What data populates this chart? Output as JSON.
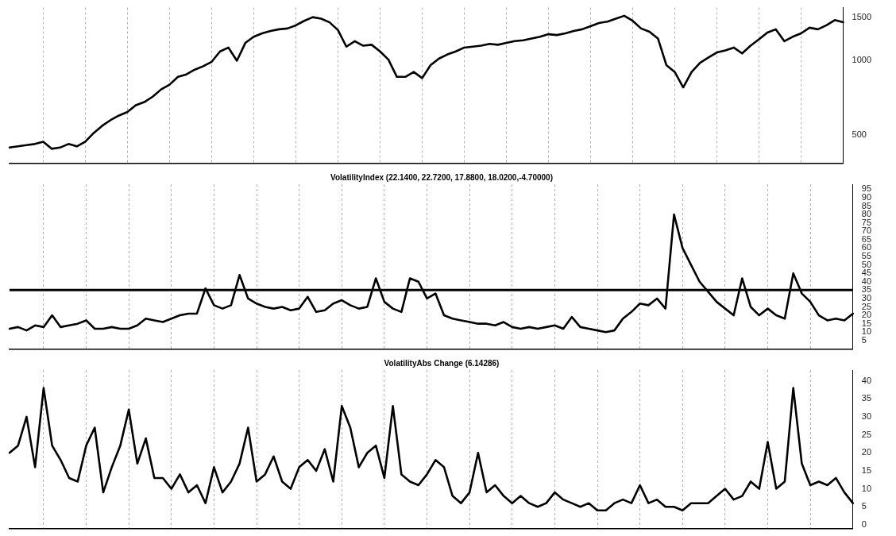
{
  "chart_data": [
    {
      "type": "line",
      "categories": [
        null,
        null,
        null,
        null,
        null,
        null,
        null,
        null,
        null,
        null,
        null,
        null,
        null,
        null,
        null,
        null,
        null,
        null,
        null,
        null,
        null,
        null,
        null,
        null,
        null,
        null,
        null,
        null,
        null,
        null,
        null,
        null,
        null,
        null,
        null,
        null,
        null,
        null,
        null,
        null,
        null,
        null,
        null,
        null,
        null,
        null,
        null,
        null,
        null,
        null,
        null,
        null,
        null,
        null,
        null,
        null,
        null,
        null,
        null,
        null,
        null,
        null,
        null,
        null,
        null,
        null,
        null,
        null,
        null,
        null,
        null,
        null,
        null,
        null,
        null,
        null,
        null,
        null,
        null,
        null,
        null,
        null,
        null,
        null,
        null,
        null,
        null,
        null,
        null,
        null,
        null,
        null,
        null,
        null,
        null,
        null,
        null,
        null,
        null,
        null
      ],
      "values": [
        445,
        450,
        455,
        460,
        470,
        440,
        445,
        460,
        450,
        470,
        510,
        545,
        575,
        600,
        620,
        660,
        680,
        715,
        765,
        800,
        860,
        880,
        920,
        950,
        990,
        1090,
        1130,
        1000,
        1180,
        1250,
        1290,
        1320,
        1340,
        1350,
        1390,
        1450,
        1500,
        1480,
        1430,
        1330,
        1140,
        1200,
        1150,
        1160,
        1090,
        1010,
        860,
        860,
        900,
        850,
        960,
        1020,
        1060,
        1090,
        1130,
        1140,
        1150,
        1170,
        1160,
        1180,
        1200,
        1210,
        1230,
        1250,
        1280,
        1270,
        1290,
        1320,
        1340,
        1380,
        1420,
        1440,
        1480,
        1520,
        1450,
        1350,
        1310,
        1230,
        960,
        900,
        780,
        900,
        980,
        1030,
        1080,
        1100,
        1130,
        1070,
        1150,
        1220,
        1300,
        1340,
        1200,
        1250,
        1290,
        1360,
        1340,
        1390,
        1460,
        1430
      ],
      "color": "#000000",
      "log": true,
      "ylim": [
        385,
        1640
      ],
      "yticks": [
        500,
        1000,
        1500
      ],
      "grid": "x",
      "tick_labels": "y",
      "marker": "none",
      "line_style": "solid"
    },
    {
      "type": "line",
      "title": "VolatilityIndex (22.1400, 22.7200, 17.8800, 18.0200,-4.70000)",
      "categories": [
        null,
        null,
        null,
        null,
        null,
        null,
        null,
        null,
        null,
        null,
        null,
        null,
        null,
        null,
        null,
        null,
        null,
        null,
        null,
        null,
        null,
        null,
        null,
        null,
        null,
        null,
        null,
        null,
        null,
        null,
        null,
        null,
        null,
        null,
        null,
        null,
        null,
        null,
        null,
        null,
        null,
        null,
        null,
        null,
        null,
        null,
        null,
        null,
        null,
        null,
        null,
        null,
        null,
        null,
        null,
        null,
        null,
        null,
        null,
        null,
        null,
        null,
        null,
        null,
        null,
        null,
        null,
        null,
        null,
        null,
        null,
        null,
        null,
        null,
        null,
        null,
        null,
        null,
        null,
        null,
        null,
        null,
        null,
        null,
        null,
        null,
        null,
        null,
        null,
        null,
        null,
        null,
        null,
        null,
        null,
        null,
        null,
        null,
        null,
        null
      ],
      "values": [
        12,
        13,
        11,
        14,
        13,
        20,
        13,
        14,
        15,
        17,
        12,
        12,
        13,
        12,
        12,
        14,
        18,
        17,
        16,
        18,
        20,
        21,
        21,
        36,
        26,
        24,
        26,
        44,
        30,
        27,
        25,
        24,
        25,
        23,
        24,
        31,
        22,
        23,
        27,
        29,
        26,
        24,
        25,
        42,
        28,
        24,
        22,
        42,
        40,
        30,
        33,
        20,
        18,
        17,
        16,
        15,
        15,
        14,
        16,
        13,
        12,
        13,
        12,
        13,
        14,
        12,
        19,
        13,
        12,
        11,
        10,
        11,
        18,
        22,
        27,
        26,
        30,
        24,
        80,
        60,
        50,
        40,
        34,
        28,
        24,
        20,
        42,
        25,
        20,
        24,
        20,
        18,
        45,
        33,
        28,
        20,
        17,
        18,
        17,
        21
      ],
      "color": "#000000",
      "ylim": [
        0,
        98
      ],
      "yticks": [
        5,
        10,
        15,
        20,
        25,
        30,
        35,
        40,
        45,
        50,
        55,
        60,
        65,
        70,
        75,
        80,
        85,
        90,
        95
      ],
      "grid": "x",
      "tick_labels": "y",
      "marker": "none",
      "line_style": "solid",
      "ref_lines": [
        {
          "axis": "y",
          "value": 35,
          "color": "#000000"
        }
      ]
    },
    {
      "type": "line",
      "title": "VolatilityAbs Change (6.14286)",
      "categories": [
        null,
        null,
        null,
        null,
        null,
        null,
        null,
        null,
        null,
        null,
        null,
        null,
        null,
        null,
        null,
        null,
        null,
        null,
        null,
        null,
        null,
        null,
        null,
        null,
        null,
        null,
        null,
        null,
        null,
        null,
        null,
        null,
        null,
        null,
        null,
        null,
        null,
        null,
        null,
        null,
        null,
        null,
        null,
        null,
        null,
        null,
        null,
        null,
        null,
        null,
        null,
        null,
        null,
        null,
        null,
        null,
        null,
        null,
        null,
        null,
        null,
        null,
        null,
        null,
        null,
        null,
        null,
        null,
        null,
        null,
        null,
        null,
        null,
        null,
        null,
        null,
        null,
        null,
        null,
        null,
        null,
        null,
        null,
        null,
        null,
        null,
        null,
        null,
        null,
        null,
        null,
        null,
        null,
        null,
        null,
        null,
        null,
        null,
        null,
        null
      ],
      "values": [
        20,
        22,
        30,
        16,
        38,
        22,
        18,
        13,
        12,
        22,
        27,
        9,
        16,
        22,
        32,
        17,
        24,
        13,
        13,
        10,
        14,
        9,
        11,
        6,
        16,
        9,
        12,
        17,
        27,
        12,
        14,
        19,
        12,
        10,
        16,
        18,
        15,
        21,
        12,
        33,
        27,
        16,
        20,
        22,
        13,
        33,
        14,
        12,
        11,
        14,
        18,
        16,
        8,
        6,
        9,
        20,
        9,
        11,
        8,
        6,
        8,
        6,
        5,
        6,
        9,
        7,
        6,
        5,
        6,
        4,
        4,
        6,
        7,
        6,
        11,
        6,
        7,
        5,
        5,
        4,
        6,
        6,
        6,
        8,
        10,
        7,
        8,
        12,
        10,
        23,
        10,
        12,
        38,
        17,
        11,
        12,
        11,
        13,
        9,
        6
      ],
      "color": "#000000",
      "ylim": [
        -1,
        43
      ],
      "yticks": [
        0,
        5,
        10,
        15,
        20,
        25,
        30,
        35,
        40
      ],
      "grid": "x",
      "tick_labels": "y",
      "marker": "none",
      "line_style": "solid"
    }
  ]
}
